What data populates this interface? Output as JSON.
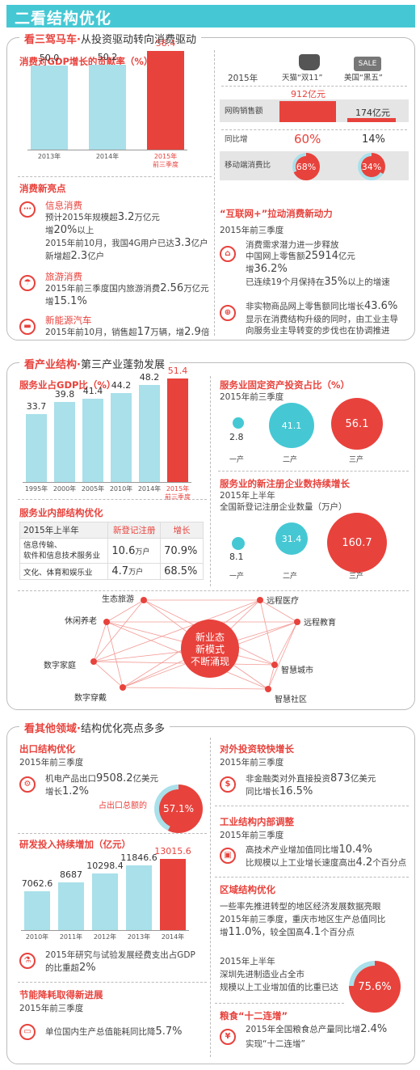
{
  "banner": "二看结构优化",
  "s1": {
    "title_red": "看三驾马车·",
    "title_rest": "从投资驱动转向消费驱动",
    "chart_title": "消费对GDP增长的贡献率（%）",
    "chart_data": {
      "type": "bar",
      "categories": [
        "2013年",
        "2014年",
        "2015年前三季度"
      ],
      "values": [
        50.0,
        50.2,
        58.4
      ],
      "value_labels": [
        "50.0",
        "50.2",
        "58.4"
      ],
      "title": "消费对GDP增长的贡献率（%）"
    },
    "cat3_line1": "2015年",
    "cat3_line2": "前三季度",
    "table": {
      "col1": "天猫“双11”",
      "col2": "美国“黑五”",
      "sale": "SALE",
      "year": "2015年",
      "r1": "网购销售额",
      "r1v1": "912亿元",
      "r1v2": "174亿元",
      "r2": "同比增",
      "r2v1": "60%",
      "r2v2": "14%",
      "r3": "移动端消费比",
      "r3v1": "68%",
      "r3v2": "34%",
      "r3p1": 0.68,
      "r3p2": 0.34
    },
    "consume_title": "消费新亮点",
    "c1_title": "信息消费",
    "c1_l1a": "预计2015年规模超",
    "c1_l1b": "3.2",
    "c1_l1c": "万亿元",
    "c1_l2a": "增",
    "c1_l2b": "20%",
    "c1_l2c": "以上",
    "c1_l3a": "2015年前10月，我国4G用户已达",
    "c1_l3b": "3.3",
    "c1_l3c": "亿户",
    "c1_l4a": "新增超",
    "c1_l4b": "2.3",
    "c1_l4c": "亿户",
    "c2_title": "旅游消费",
    "c2_l1a": "2015年前三季度国内旅游消费",
    "c2_l1b": "2.56",
    "c2_l1c": "万亿元",
    "c2_l2a": "增",
    "c2_l2b": "15.1%",
    "c3_title": "新能源汽车",
    "c3_l1a": "2015年前10月，销售超",
    "c3_l1b": "17",
    "c3_l1c": "万辆，增",
    "c3_l1d": "2.9",
    "c3_l1e": "倍",
    "net_title": "“互联网+”拉动消费新动力",
    "net_year": "2015年前三季度",
    "n1": "消费需求潜力进一步释放",
    "n2a": "中国网上零售额",
    "n2b": "25914",
    "n2c": "亿元",
    "n3a": "增",
    "n3b": "36.2%",
    "n4a": "已连续19个月保持在",
    "n4b": "35%",
    "n4c": "以上的增速",
    "n5a": "非实物商品网上零售额同比增长",
    "n5b": "43.6%",
    "n6": "显示在消费结构升级的同时，由工业主导",
    "n7": "向服务业主导转变的步伐也在协调推进"
  },
  "s2": {
    "title_red": "看产业结构·",
    "title_rest": "第三产业蓬勃发展",
    "chart_title": "服务业占GDP比（%）",
    "chart_data": {
      "type": "bar",
      "categories": [
        "1995年",
        "2000年",
        "2005年",
        "2010年",
        "2014年",
        "2015年前三季度"
      ],
      "values": [
        33.7,
        39.8,
        41.4,
        44.2,
        48.2,
        51.4
      ],
      "value_labels": [
        "33.7",
        "39.8",
        "41.4",
        "44.2",
        "48.2",
        "51.4"
      ],
      "title": "服务业占GDP比（%）"
    },
    "cat6_line1": "2015年",
    "cat6_line2": "前三季度",
    "fix_title": "服务业固定资产投资占比（%）",
    "fix_year": "2015年前三季度",
    "fix_vals": [
      "2.8",
      "41.1",
      "56.1"
    ],
    "ind": [
      "一产",
      "二产",
      "三产"
    ],
    "reg_title": "服务业的新注册企业数持续增长",
    "reg_l1": "2015年上半年",
    "reg_l2": "全国新登记注册企业数量（万户）",
    "reg_vals": [
      "8.1",
      "31.4",
      "160.7"
    ],
    "inner_title": "服务业内部结构优化",
    "tb_h": [
      "2015年上半年",
      "新登记注册",
      "增长"
    ],
    "tb_r1a": "信息传输、",
    "tb_r1b": "软件和信息技术服务业",
    "tb_r1v": "10.6",
    "tb_r1u": "万户",
    "tb_r1g": "70.9%",
    "tb_r2": "文化、体育和娱乐业",
    "tb_r2v": "4.7",
    "tb_r2u": "万户",
    "tb_r2g": "68.5%",
    "center": [
      "新业态",
      "新模式",
      "不断涌现"
    ],
    "nodes": [
      "生态旅游",
      "休闲养老",
      "数字家庭",
      "数字穿戴",
      "远程医疗",
      "远程教育",
      "智慧城市",
      "智慧社区"
    ]
  },
  "s3": {
    "title_red": "看其他领域·",
    "title_rest": "结构优化亮点多多",
    "exp_title": "出口结构优化",
    "exp_year": "2015年前三季度",
    "exp_l1a": "机电产品出口",
    "exp_l1b": "9508.2",
    "exp_l1c": "亿美元",
    "exp_l2a": "增长",
    "exp_l2b": "1.2%",
    "exp_share_label": "占出口总额的",
    "exp_share": "57.1%",
    "exp_share_p": 0.571,
    "rd_title": "研发投入持续增加（亿元）",
    "chart_data": {
      "type": "bar",
      "categories": [
        "2010年",
        "2011年",
        "2012年",
        "2013年",
        "2014年"
      ],
      "values": [
        7062.6,
        8687,
        10298.4,
        11846.6,
        13015.6
      ],
      "value_labels": [
        "7062.6",
        "8687",
        "10298.4",
        "11846.6",
        "13015.6"
      ],
      "title": "研发投入持续增加（亿元）"
    },
    "rd_note1": "2015年研究与试验发展经费支出占GDP",
    "rd_note2a": "的比重超",
    "rd_note2b": "2%",
    "en_title": "节能降耗取得新进展",
    "en_year": "2015年前三季度",
    "en_l1a": "单位国内生产总值能耗同比降",
    "en_l1b": "5.7%",
    "inv_title": "对外投资较快增长",
    "inv_year": "2015年前三季度",
    "inv_l1a": "非金融类对外直接投资",
    "inv_l1b": "873",
    "inv_l1c": "亿美元",
    "inv_l2a": "同比增长",
    "inv_l2b": "16.5%",
    "ind_title": "工业结构内部调整",
    "ind_year": "2015年前三季度",
    "ind_l1a": "高技术产业增加值同比增",
    "ind_l1b": "10.4%",
    "ind_l2a": "比规模以上工业增长速度高出",
    "ind_l2b": "4.2",
    "ind_l2c": "个百分点",
    "reg_title": "区域结构优化",
    "reg_l1": "一些率先推进转型的地区经济发展数据亮眼",
    "reg_l2": "2015年前三季度，重庆市地区生产总值同比",
    "reg_l3a": "增",
    "reg_l3b": "11.0%",
    "reg_l3c": "，较全国高",
    "reg_l3d": "4.1",
    "reg_l3e": "个百分点",
    "sz_l1": "2015年上半年",
    "sz_l2": "深圳先进制造业占全市",
    "sz_l3": "规模以上工业增加值的比重已达",
    "sz_share": "75.6%",
    "sz_p": 0.756,
    "grain_title": "粮食“十二连增”",
    "grain_l1a": "2015年全国粮食总产量同比增",
    "grain_l1b": "2.4%",
    "grain_l2": "实现“十二连增”"
  },
  "colors": {
    "red": "#e8423c",
    "cyan": "#45c8d4",
    "lightbar": "#a9e0ea"
  }
}
